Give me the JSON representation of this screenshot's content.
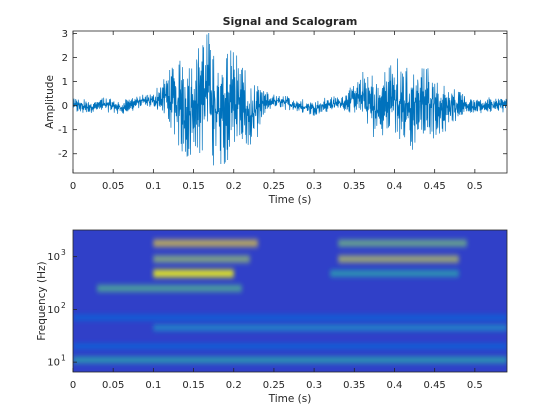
{
  "chart_data": [
    {
      "type": "line",
      "title": "Signal and Scalogram",
      "xlabel": "Time (s)",
      "ylabel": "Amplitude",
      "xlim": [
        0,
        0.54
      ],
      "ylim": [
        -2.8,
        3.1
      ],
      "xticks": [
        0,
        0.05,
        0.1,
        0.15,
        0.2,
        0.25,
        0.3,
        0.35,
        0.4,
        0.45,
        0.5
      ],
      "xticklabels": [
        "0",
        "0.05",
        "0.1",
        "0.15",
        "0.2",
        "0.25",
        "0.3",
        "0.35",
        "0.4",
        "0.45",
        "0.5"
      ],
      "yticks": [
        -2,
        -1,
        0,
        1,
        2,
        3
      ],
      "yticklabels": [
        "-2",
        "-1",
        "0",
        "1",
        "2",
        "3"
      ],
      "line_color": "#0072bd",
      "grid": false,
      "series": [
        {
          "x": [
            0,
            0.02,
            0.04,
            0.06,
            0.08,
            0.1,
            0.12,
            0.14,
            0.16,
            0.17,
            0.18,
            0.2,
            0.22,
            0.24,
            0.26,
            0.28,
            0.3,
            0.32,
            0.34,
            0.36,
            0.38,
            0.4,
            0.42,
            0.44,
            0.46,
            0.48,
            0.5,
            0.52,
            0.54
          ],
          "values": [
            0.1,
            -0.2,
            0.2,
            -0.3,
            0.4,
            0.6,
            1.0,
            -0.6,
            1.4,
            1.9,
            -1.2,
            1.1,
            -1.5,
            0.4,
            0.5,
            0.0,
            -0.3,
            0.2,
            0.4,
            1.1,
            -0.6,
            1.3,
            -0.9,
            0.8,
            -0.7,
            0.4,
            -0.2,
            0.1,
            0.1
          ]
        }
      ]
    },
    {
      "type": "heatmap",
      "title": "",
      "xlabel": "Time (s)",
      "ylabel": "Frequency (Hz)",
      "xlim": [
        0,
        0.54
      ],
      "ylim": [
        6.5,
        3200
      ],
      "yscale": "log",
      "xticks": [
        0,
        0.05,
        0.1,
        0.15,
        0.2,
        0.25,
        0.3,
        0.35,
        0.4,
        0.45,
        0.5
      ],
      "xticklabels": [
        "0",
        "0.05",
        "0.1",
        "0.15",
        "0.2",
        "0.25",
        "0.3",
        "0.35",
        "0.4",
        "0.45",
        "0.5"
      ],
      "yticks": [
        10,
        100,
        1000
      ],
      "yticklabels": [
        "10",
        "10",
        "10"
      ],
      "yticklabel_exponents": [
        "1",
        "2",
        "3"
      ],
      "colormap": "parula",
      "background_color": "#3040c8",
      "bands": [
        {
          "freq": 11,
          "t0": 0.0,
          "t1": 0.54,
          "intensity": 0.55
        },
        {
          "freq": 20,
          "t0": 0.0,
          "t1": 0.54,
          "intensity": 0.25
        },
        {
          "freq": 45,
          "t0": 0.1,
          "t1": 0.54,
          "intensity": 0.45
        },
        {
          "freq": 70,
          "t0": 0.0,
          "t1": 0.54,
          "intensity": 0.25
        },
        {
          "freq": 250,
          "t0": 0.03,
          "t1": 0.21,
          "intensity": 0.65
        },
        {
          "freq": 480,
          "t0": 0.1,
          "t1": 0.2,
          "intensity": 1.0
        },
        {
          "freq": 480,
          "t0": 0.32,
          "t1": 0.48,
          "intensity": 0.55
        },
        {
          "freq": 900,
          "t0": 0.1,
          "t1": 0.22,
          "intensity": 0.75
        },
        {
          "freq": 900,
          "t0": 0.33,
          "t1": 0.48,
          "intensity": 0.8
        },
        {
          "freq": 1800,
          "t0": 0.1,
          "t1": 0.23,
          "intensity": 0.85
        },
        {
          "freq": 1800,
          "t0": 0.33,
          "t1": 0.49,
          "intensity": 0.7
        }
      ]
    }
  ]
}
